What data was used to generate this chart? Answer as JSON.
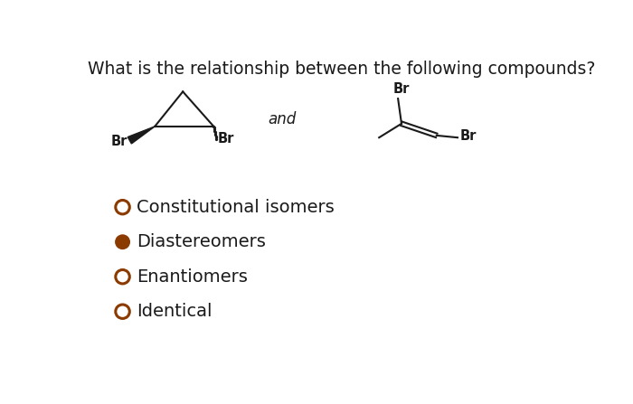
{
  "title": "What is the relationship between the following compounds?",
  "title_fontsize": 13.5,
  "options": [
    {
      "label": "Constitutional isomers",
      "filled": false
    },
    {
      "label": "Diastereomers",
      "filled": true
    },
    {
      "label": "Enantiomers",
      "filled": false
    },
    {
      "label": "Identical",
      "filled": false
    }
  ],
  "option_circle_color": "#8B3A00",
  "option_fontsize": 14,
  "and_text": "and",
  "and_fontsize": 12,
  "bg_color": "#ffffff",
  "text_color": "#1a1a1a",
  "bond_color": "#1a1a1a",
  "br_color": "#1a1a1a",
  "br_fontsize": 10.5
}
